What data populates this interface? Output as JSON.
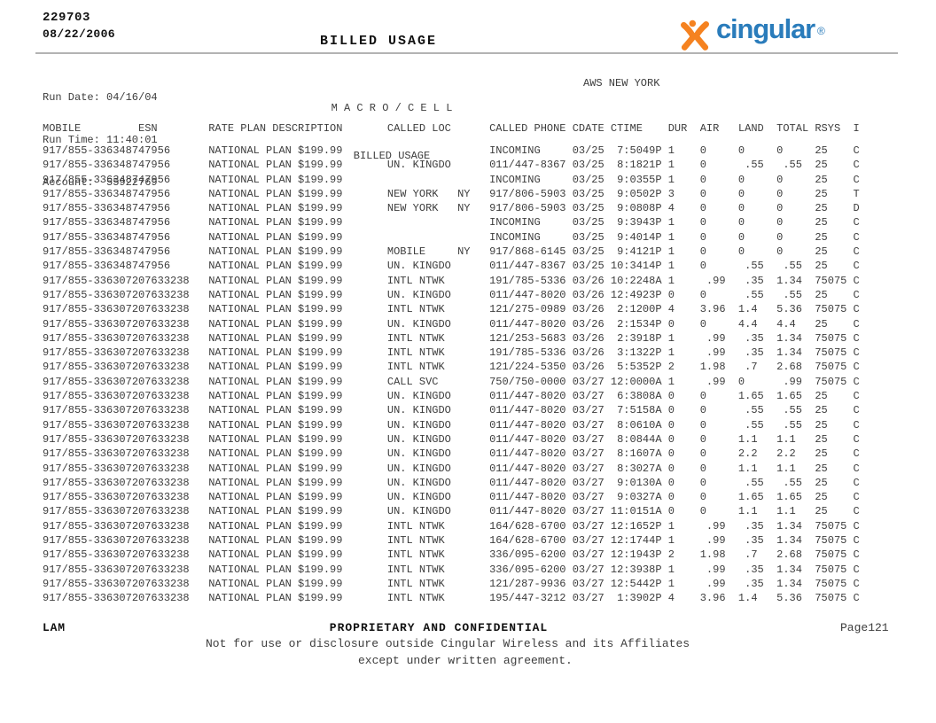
{
  "header": {
    "doc_number": "229703",
    "doc_date": "08/22/2006",
    "page_title": "BILLED USAGE",
    "run_date_label": "Run Date:",
    "run_date": "04/16/04",
    "run_time_label": "Run Time:",
    "run_time": "11:40:01",
    "account_label": "Account:",
    "account": "55922769",
    "center_title": "M A C R O / C E L L",
    "center_subtitle": "BILLED USAGE",
    "market": "AWS NEW YORK",
    "logo": {
      "brand": "cingular",
      "registered": "®",
      "jack_color": "#f58220",
      "text_color": "#2a7cbb"
    }
  },
  "table": {
    "columns": [
      "MOBILE",
      "ESN",
      "RATE PLAN DESCRIPTION",
      "CALLED LOC",
      "CALLED PHONE",
      "CDATE",
      "CTIME",
      "DUR",
      "AIR",
      "LAND",
      "TOTAL",
      "RSYS",
      "I"
    ],
    "rows": [
      [
        "917/855-3363",
        "48747956",
        "NATIONAL PLAN $199.99",
        "",
        "",
        "INCOMING",
        "03/25",
        "7:5049P",
        "1",
        "0",
        "0",
        "0",
        "25",
        "C"
      ],
      [
        "917/855-3363",
        "48747956",
        "NATIONAL PLAN $199.99",
        "UN. KINGDO",
        "",
        "011/447-8367",
        "03/25",
        "8:1821P",
        "1",
        "0",
        ".55",
        ".55",
        "25",
        "C"
      ],
      [
        "917/855-3363",
        "48747956",
        "NATIONAL PLAN $199.99",
        "",
        "",
        "INCOMING",
        "03/25",
        "9:0355P",
        "1",
        "0",
        "0",
        "0",
        "25",
        "C"
      ],
      [
        "917/855-3363",
        "48747956",
        "NATIONAL PLAN $199.99",
        "NEW YORK",
        "NY",
        "917/806-5903",
        "03/25",
        "9:0502P",
        "3",
        "0",
        "0",
        "0",
        "25",
        "T"
      ],
      [
        "917/855-3363",
        "48747956",
        "NATIONAL PLAN $199.99",
        "NEW YORK",
        "NY",
        "917/806-5903",
        "03/25",
        "9:0808P",
        "4",
        "0",
        "0",
        "0",
        "25",
        "D"
      ],
      [
        "917/855-3363",
        "48747956",
        "NATIONAL PLAN $199.99",
        "",
        "",
        "INCOMING",
        "03/25",
        "9:3943P",
        "1",
        "0",
        "0",
        "0",
        "25",
        "C"
      ],
      [
        "917/855-3363",
        "48747956",
        "NATIONAL PLAN $199.99",
        "",
        "",
        "INCOMING",
        "03/25",
        "9:4014P",
        "1",
        "0",
        "0",
        "0",
        "25",
        "C"
      ],
      [
        "917/855-3363",
        "48747956",
        "NATIONAL PLAN $199.99",
        "MOBILE",
        "NY",
        "917/868-6145",
        "03/25",
        "9:4121P",
        "1",
        "0",
        "0",
        "0",
        "25",
        "C"
      ],
      [
        "917/855-3363",
        "48747956",
        "NATIONAL PLAN $199.99",
        "UN. KINGDO",
        "",
        "011/447-8367",
        "03/25",
        "10:3414P",
        "1",
        "0",
        ".55",
        ".55",
        "25",
        "C"
      ],
      [
        "917/855-3363",
        "07207633238",
        "NATIONAL PLAN $199.99",
        "INTL NTWK",
        "",
        "191/785-5336",
        "03/26",
        "10:2248A",
        "1",
        ".99",
        ".35",
        "1.34",
        "75075",
        "C"
      ],
      [
        "917/855-3363",
        "07207633238",
        "NATIONAL PLAN $199.99",
        "UN. KINGDO",
        "",
        "011/447-8020",
        "03/26",
        "12:4923P",
        "0",
        "0",
        ".55",
        ".55",
        "25",
        "C"
      ],
      [
        "917/855-3363",
        "07207633238",
        "NATIONAL PLAN $199.99",
        "INTL NTWK",
        "",
        "121/275-0989",
        "03/26",
        "2:1200P",
        "4",
        "3.96",
        "1.4",
        "5.36",
        "75075",
        "C"
      ],
      [
        "917/855-3363",
        "07207633238",
        "NATIONAL PLAN $199.99",
        "UN. KINGDO",
        "",
        "011/447-8020",
        "03/26",
        "2:1534P",
        "0",
        "0",
        "4.4",
        "4.4",
        "25",
        "C"
      ],
      [
        "917/855-3363",
        "07207633238",
        "NATIONAL PLAN $199.99",
        "INTL NTWK",
        "",
        "121/253-5683",
        "03/26",
        "2:3918P",
        "1",
        ".99",
        ".35",
        "1.34",
        "75075",
        "C"
      ],
      [
        "917/855-3363",
        "07207633238",
        "NATIONAL PLAN $199.99",
        "INTL NTWK",
        "",
        "191/785-5336",
        "03/26",
        "3:1322P",
        "1",
        ".99",
        ".35",
        "1.34",
        "75075",
        "C"
      ],
      [
        "917/855-3363",
        "07207633238",
        "NATIONAL PLAN $199.99",
        "INTL NTWK",
        "",
        "121/224-5350",
        "03/26",
        "5:5352P",
        "2",
        "1.98",
        ".7",
        "2.68",
        "75075",
        "C"
      ],
      [
        "917/855-3363",
        "07207633238",
        "NATIONAL PLAN $199.99",
        "CALL SVC",
        "",
        "750/750-0000",
        "03/27",
        "12:0000A",
        "1",
        ".99",
        "0",
        ".99",
        "75075",
        "C"
      ],
      [
        "917/855-3363",
        "07207633238",
        "NATIONAL PLAN $199.99",
        "UN. KINGDO",
        "",
        "011/447-8020",
        "03/27",
        "6:3808A",
        "0",
        "0",
        "1.65",
        "1.65",
        "25",
        "C"
      ],
      [
        "917/855-3363",
        "07207633238",
        "NATIONAL PLAN $199.99",
        "UN. KINGDO",
        "",
        "011/447-8020",
        "03/27",
        "7:5158A",
        "0",
        "0",
        ".55",
        ".55",
        "25",
        "C"
      ],
      [
        "917/855-3363",
        "07207633238",
        "NATIONAL PLAN $199.99",
        "UN. KINGDO",
        "",
        "011/447-8020",
        "03/27",
        "8:0610A",
        "0",
        "0",
        ".55",
        ".55",
        "25",
        "C"
      ],
      [
        "917/855-3363",
        "07207633238",
        "NATIONAL PLAN $199.99",
        "UN. KINGDO",
        "",
        "011/447-8020",
        "03/27",
        "8:0844A",
        "0",
        "0",
        "1.1",
        "1.1",
        "25",
        "C"
      ],
      [
        "917/855-3363",
        "07207633238",
        "NATIONAL PLAN $199.99",
        "UN. KINGDO",
        "",
        "011/447-8020",
        "03/27",
        "8:1607A",
        "0",
        "0",
        "2.2",
        "2.2",
        "25",
        "C"
      ],
      [
        "917/855-3363",
        "07207633238",
        "NATIONAL PLAN $199.99",
        "UN. KINGDO",
        "",
        "011/447-8020",
        "03/27",
        "8:3027A",
        "0",
        "0",
        "1.1",
        "1.1",
        "25",
        "C"
      ],
      [
        "917/855-3363",
        "07207633238",
        "NATIONAL PLAN $199.99",
        "UN. KINGDO",
        "",
        "011/447-8020",
        "03/27",
        "9:0130A",
        "0",
        "0",
        ".55",
        ".55",
        "25",
        "C"
      ],
      [
        "917/855-3363",
        "07207633238",
        "NATIONAL PLAN $199.99",
        "UN. KINGDO",
        "",
        "011/447-8020",
        "03/27",
        "9:0327A",
        "0",
        "0",
        "1.65",
        "1.65",
        "25",
        "C"
      ],
      [
        "917/855-3363",
        "07207633238",
        "NATIONAL PLAN $199.99",
        "UN. KINGDO",
        "",
        "011/447-8020",
        "03/27",
        "11:0151A",
        "0",
        "0",
        "1.1",
        "1.1",
        "25",
        "C"
      ],
      [
        "917/855-3363",
        "07207633238",
        "NATIONAL PLAN $199.99",
        "INTL NTWK",
        "",
        "164/628-6700",
        "03/27",
        "12:1652P",
        "1",
        ".99",
        ".35",
        "1.34",
        "75075",
        "C"
      ],
      [
        "917/855-3363",
        "07207633238",
        "NATIONAL PLAN $199.99",
        "INTL NTWK",
        "",
        "164/628-6700",
        "03/27",
        "12:1744P",
        "1",
        ".99",
        ".35",
        "1.34",
        "75075",
        "C"
      ],
      [
        "917/855-3363",
        "07207633238",
        "NATIONAL PLAN $199.99",
        "INTL NTWK",
        "",
        "336/095-6200",
        "03/27",
        "12:1943P",
        "2",
        "1.98",
        ".7",
        "2.68",
        "75075",
        "C"
      ],
      [
        "917/855-3363",
        "07207633238",
        "NATIONAL PLAN $199.99",
        "INTL NTWK",
        "",
        "336/095-6200",
        "03/27",
        "12:3938P",
        "1",
        ".99",
        ".35",
        "1.34",
        "75075",
        "C"
      ],
      [
        "917/855-3363",
        "07207633238",
        "NATIONAL PLAN $199.99",
        "INTL NTWK",
        "",
        "121/287-9936",
        "03/27",
        "12:5442P",
        "1",
        ".99",
        ".35",
        "1.34",
        "75075",
        "C"
      ],
      [
        "917/855-3363",
        "07207633238",
        "NATIONAL PLAN $199.99",
        "INTL NTWK",
        "",
        "195/447-3212",
        "03/27",
        "1:3902P",
        "4",
        "3.96",
        "1.4",
        "5.36",
        "75075",
        "C"
      ]
    ]
  },
  "footer": {
    "lam": "LAM",
    "confidential": "PROPRIETARY AND CONFIDENTIAL",
    "page": "Page121",
    "line2": "Not for use or disclosure outside Cingular Wireless and its Affiliates",
    "line3": "except under written agreement."
  }
}
